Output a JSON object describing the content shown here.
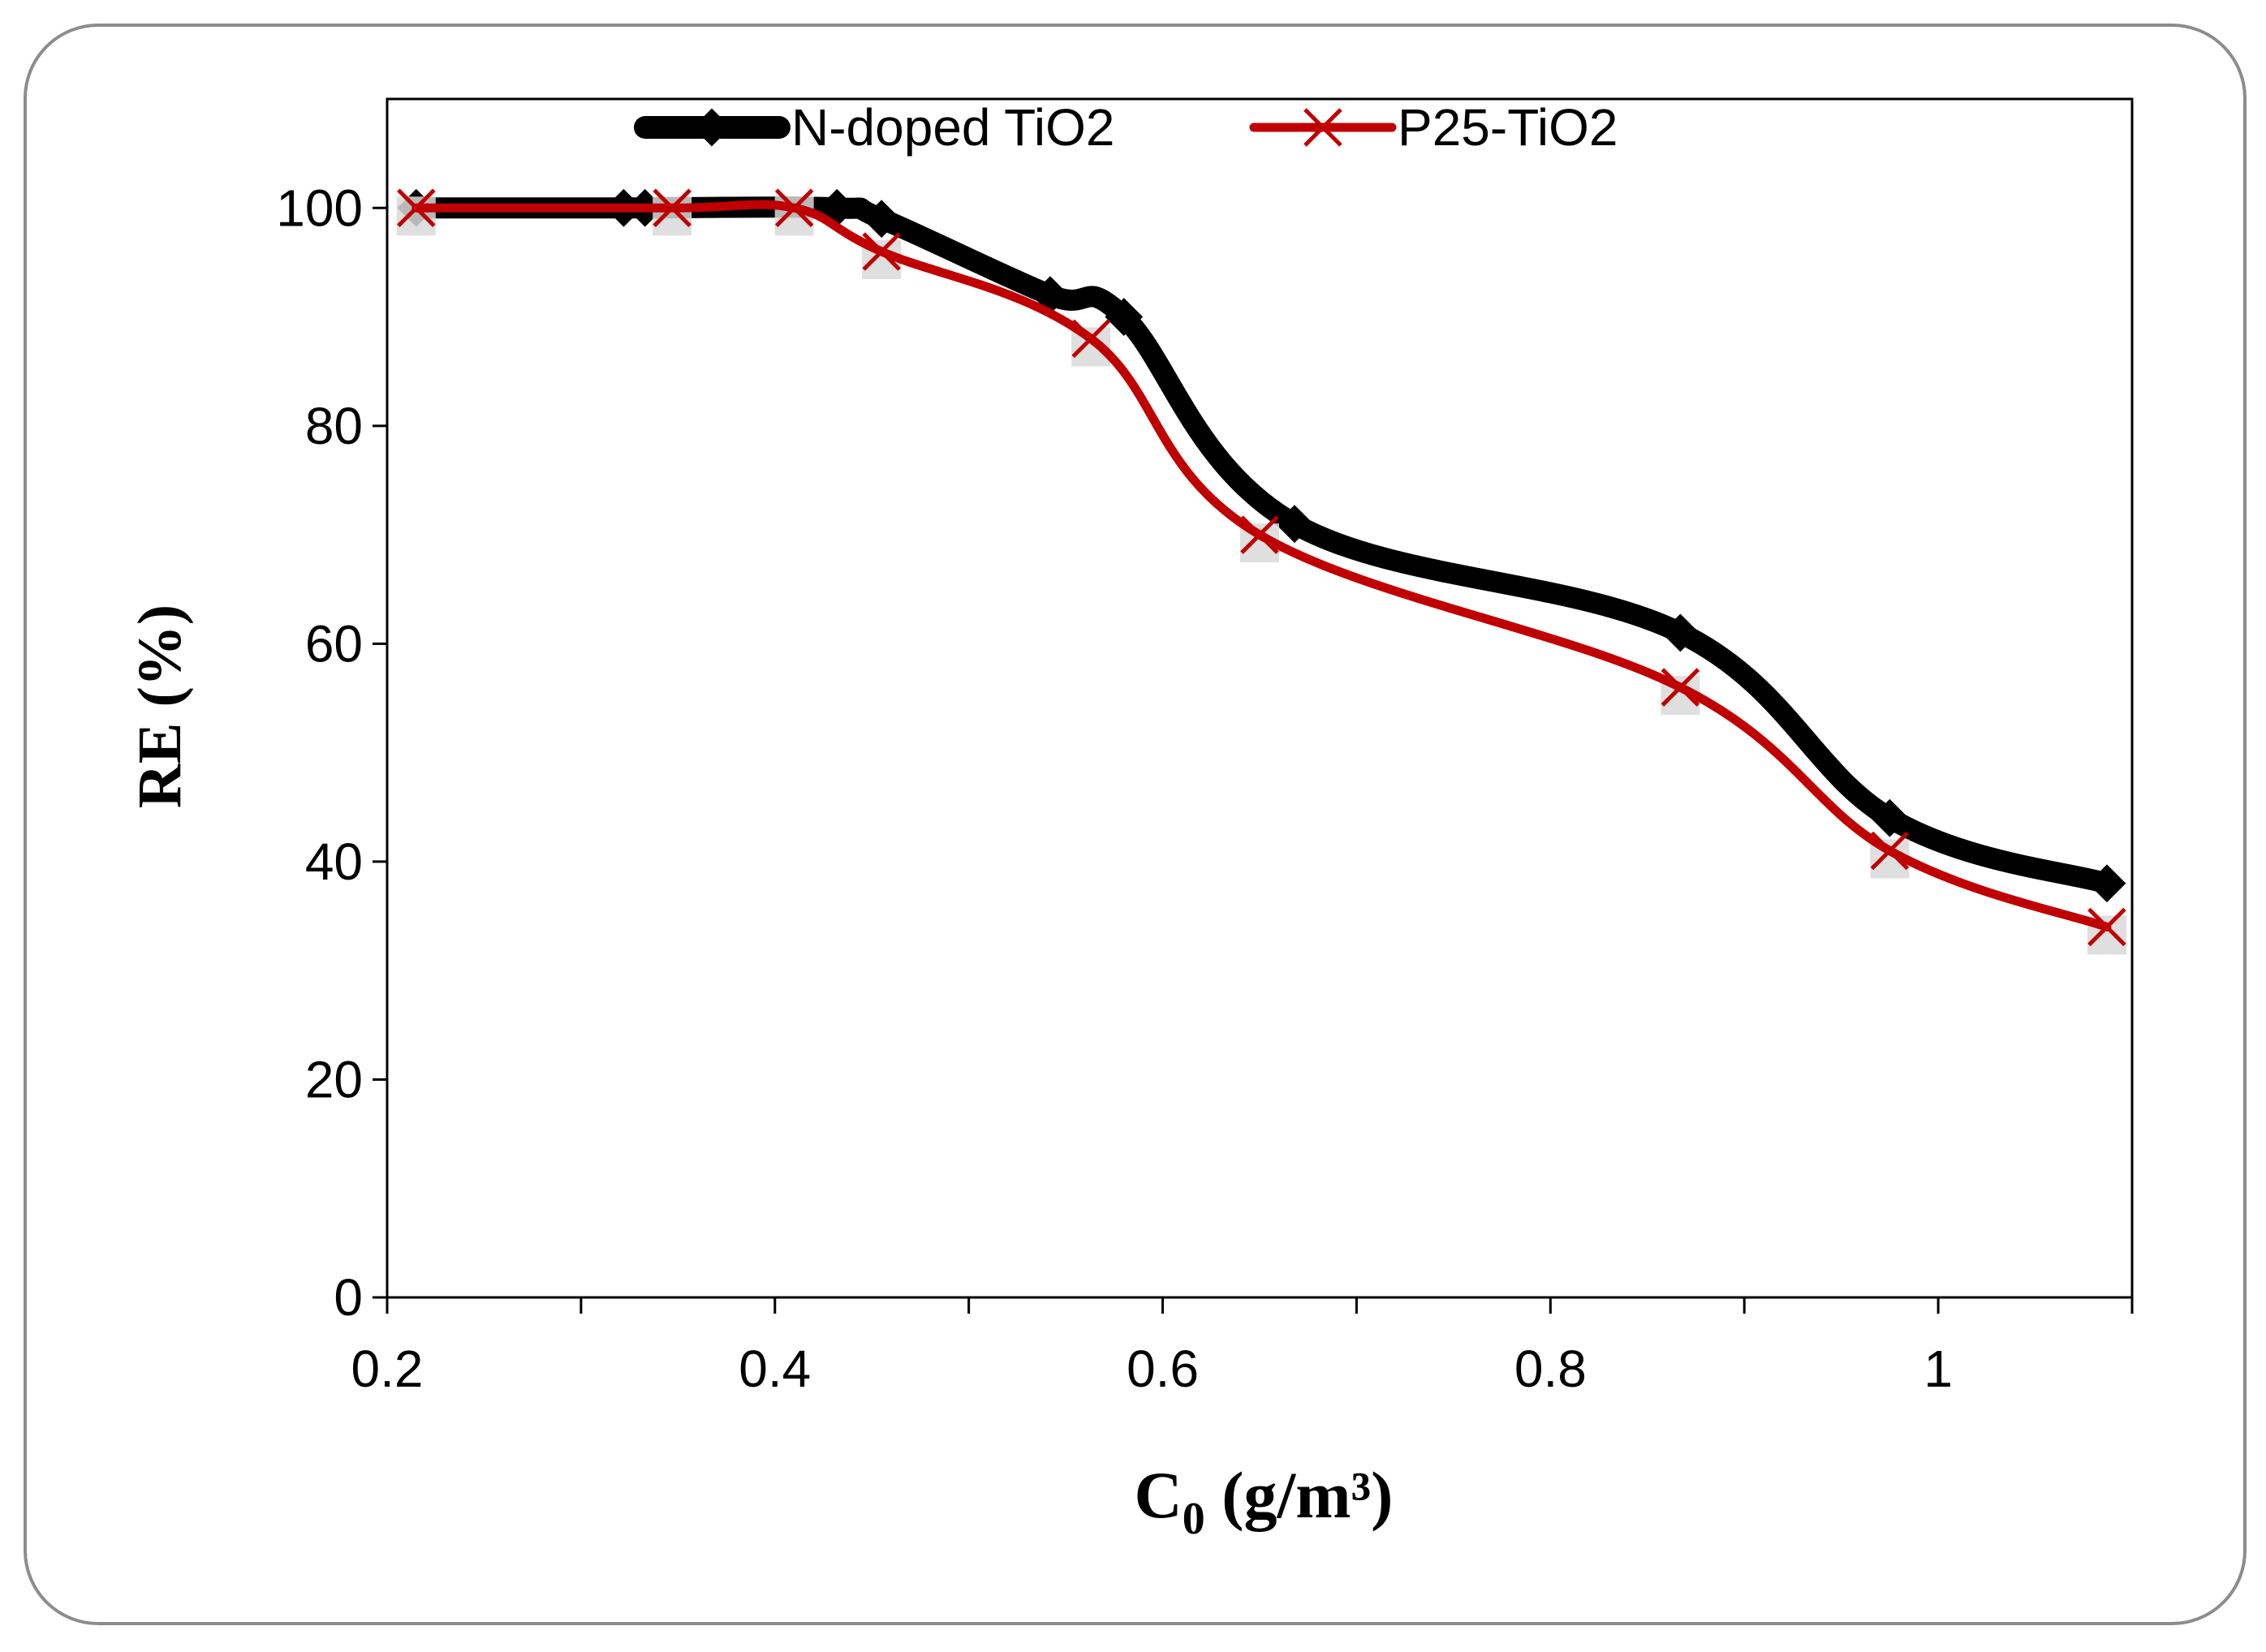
{
  "chart_data": {
    "type": "line",
    "title": "",
    "xlabel_main": "C",
    "xlabel_sub": "0",
    "xlabel_rest": " (g/m³)",
    "ylabel": "RE (%)",
    "xlim": [
      0.2,
      1.1
    ],
    "ylim": [
      0,
      110
    ],
    "xticks": [
      0.2,
      0.3,
      0.4,
      0.5,
      0.6,
      0.7,
      0.8,
      0.9,
      1.0,
      1.1
    ],
    "xtick_labels": [
      "0.2",
      "",
      "0.4",
      "",
      "0.6",
      "",
      "0.8",
      "",
      "1",
      ""
    ],
    "yticks": [
      0,
      20,
      40,
      60,
      80,
      100
    ],
    "ytick_labels": [
      "0",
      "20",
      "40",
      "60",
      "80",
      "100"
    ],
    "grid": false,
    "legend_position": "top-center",
    "series": [
      {
        "name": "N-doped TiO2",
        "color": "#000000",
        "marker": "diamond",
        "x": [
          0.215,
          0.322,
          0.333,
          0.432,
          0.455,
          0.542,
          0.58,
          0.668,
          0.867,
          0.975,
          1.087
        ],
        "y": [
          100,
          100,
          100,
          100,
          99,
          92,
          90,
          71,
          61,
          44,
          38
        ]
      },
      {
        "name": "P25-TiO2",
        "color": "#c00000",
        "marker": "x",
        "x": [
          0.215,
          0.347,
          0.41,
          0.455,
          0.563,
          0.65,
          0.867,
          0.975,
          1.087
        ],
        "y": [
          100,
          100,
          100,
          96,
          88,
          70,
          56,
          41,
          34
        ]
      }
    ]
  }
}
